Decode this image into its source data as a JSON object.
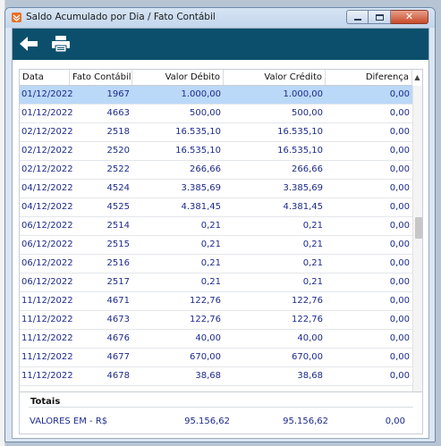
{
  "window": {
    "title": "Saldo Acumulado por Dia / Fato Contábil",
    "close_label": "✕"
  },
  "toolbar": {
    "back_icon": "arrow-left-icon",
    "print_icon": "printer-icon"
  },
  "grid": {
    "columns": [
      "Data",
      "Fato Contábil",
      "Valor Débito",
      "Valor Crédito",
      "Diferença"
    ],
    "rows": [
      {
        "data": "01/12/2022",
        "fato": "1967",
        "debito": "1.000,00",
        "credito": "1.000,00",
        "diferenca": "0,00"
      },
      {
        "data": "01/12/2022",
        "fato": "4663",
        "debito": "500,00",
        "credito": "500,00",
        "diferenca": "0,00"
      },
      {
        "data": "02/12/2022",
        "fato": "2518",
        "debito": "16.535,10",
        "credito": "16.535,10",
        "diferenca": "0,00"
      },
      {
        "data": "02/12/2022",
        "fato": "2520",
        "debito": "16.535,10",
        "credito": "16.535,10",
        "diferenca": "0,00"
      },
      {
        "data": "02/12/2022",
        "fato": "2522",
        "debito": "266,66",
        "credito": "266,66",
        "diferenca": "0,00"
      },
      {
        "data": "04/12/2022",
        "fato": "4524",
        "debito": "3.385,69",
        "credito": "3.385,69",
        "diferenca": "0,00"
      },
      {
        "data": "04/12/2022",
        "fato": "4525",
        "debito": "4.381,45",
        "credito": "4.381,45",
        "diferenca": "0,00"
      },
      {
        "data": "06/12/2022",
        "fato": "2514",
        "debito": "0,21",
        "credito": "0,21",
        "diferenca": "0,00"
      },
      {
        "data": "06/12/2022",
        "fato": "2515",
        "debito": "0,21",
        "credito": "0,21",
        "diferenca": "0,00"
      },
      {
        "data": "06/12/2022",
        "fato": "2516",
        "debito": "0,21",
        "credito": "0,21",
        "diferenca": "0,00"
      },
      {
        "data": "06/12/2022",
        "fato": "2517",
        "debito": "0,21",
        "credito": "0,21",
        "diferenca": "0,00"
      },
      {
        "data": "11/12/2022",
        "fato": "4671",
        "debito": "122,76",
        "credito": "122,76",
        "diferenca": "0,00"
      },
      {
        "data": "11/12/2022",
        "fato": "4673",
        "debito": "122,76",
        "credito": "122,76",
        "diferenca": "0,00"
      },
      {
        "data": "11/12/2022",
        "fato": "4676",
        "debito": "40,00",
        "credito": "40,00",
        "diferenca": "0,00"
      },
      {
        "data": "11/12/2022",
        "fato": "4677",
        "debito": "670,00",
        "credito": "670,00",
        "diferenca": "0,00"
      },
      {
        "data": "11/12/2022",
        "fato": "4678",
        "debito": "38,68",
        "credito": "38,68",
        "diferenca": "0,00"
      }
    ],
    "selected_row": 0
  },
  "totals": {
    "title": "Totais",
    "label": "VALORES EM - R$",
    "debito": "95.156,62",
    "credito": "95.156,62",
    "diferenca": "0,00"
  },
  "colors": {
    "toolbar": "#0b4f6c",
    "value_text": "#1c2a8c",
    "selection": "#bad8f8"
  }
}
